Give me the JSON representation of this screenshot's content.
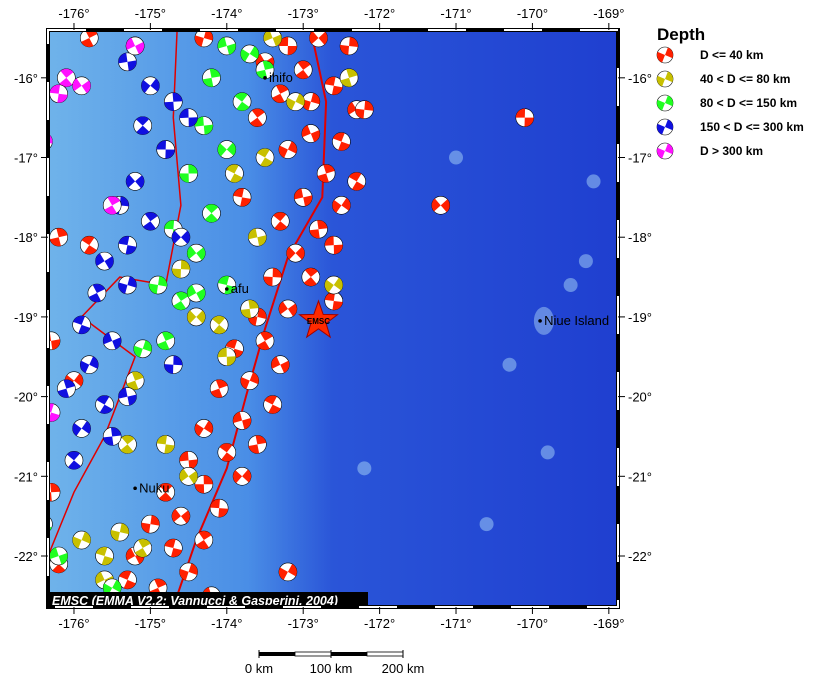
{
  "map": {
    "extent": {
      "lon": [
        -176.34,
        -168.88
      ],
      "lat": [
        -22.64,
        -15.4
      ]
    },
    "lon_ticks": [
      -176,
      -175,
      -174,
      -173,
      -172,
      -171,
      -170,
      -169
    ],
    "lat_ticks": [
      -16,
      -17,
      -18,
      -19,
      -20,
      -21,
      -22
    ],
    "lon_labels": [
      "-176°",
      "-175°",
      "-174°",
      "-173°",
      "-172°",
      "-171°",
      "-170°",
      "-169°"
    ],
    "lat_labels": [
      "-16°",
      "-17°",
      "-18°",
      "-19°",
      "-20°",
      "-21°",
      "-22°"
    ],
    "colors": {
      "ocean_shallow": "#6fb3ea",
      "ocean_deep": "#1f3fd0",
      "plate_boundary": "#e00000"
    },
    "places": [
      {
        "name": "ihifo",
        "lon": -173.5,
        "lat": -16.0
      },
      {
        "name": "afu",
        "lon": -174.0,
        "lat": -18.65
      },
      {
        "name": "Nuku",
        "lon": -175.2,
        "lat": -21.15
      },
      {
        "name": "Niue Island",
        "lon": -169.9,
        "lat": -19.05
      }
    ],
    "epicenter": {
      "label": "EMSC",
      "lon": -172.8,
      "lat": -19.05,
      "color": "#ff2a00"
    },
    "credit": "EMSC (EMMA V2.2; Vannucci & Gasperini, 2004)",
    "scale_bar": {
      "labels": [
        "0 km",
        "100 km",
        "200 km"
      ]
    },
    "plate_boundary": [
      [
        -172.9,
        -15.4
      ],
      [
        -172.7,
        -16.3
      ],
      [
        -172.75,
        -17.5
      ],
      [
        -173.2,
        -18.25
      ],
      [
        -173.5,
        -19.15
      ],
      [
        -173.75,
        -20.0
      ],
      [
        -174.0,
        -20.9
      ],
      [
        -174.4,
        -21.8
      ],
      [
        -174.7,
        -22.64
      ]
    ],
    "back_arc": [
      [
        -174.65,
        -15.4
      ],
      [
        -174.7,
        -16.5
      ],
      [
        -174.6,
        -17.6
      ],
      [
        -174.8,
        -18.6
      ],
      [
        -175.4,
        -18.5
      ],
      [
        -175.9,
        -19.0
      ],
      [
        -175.2,
        -19.5
      ],
      [
        -175.6,
        -20.5
      ],
      [
        -176.0,
        -21.2
      ],
      [
        -176.34,
        -22.0
      ]
    ],
    "events": [
      [
        -173.2,
        -15.6,
        1
      ],
      [
        -172.8,
        -15.5,
        1
      ],
      [
        -172.4,
        -15.6,
        1
      ],
      [
        -173.0,
        -15.9,
        1
      ],
      [
        -172.6,
        -16.1,
        1
      ],
      [
        -172.3,
        -16.4,
        1
      ],
      [
        -172.9,
        -16.3,
        1
      ],
      [
        -173.3,
        -16.2,
        1
      ],
      [
        -172.5,
        -16.8,
        1
      ],
      [
        -172.9,
        -16.7,
        1
      ],
      [
        -173.2,
        -16.9,
        1
      ],
      [
        -172.7,
        -17.2,
        1
      ],
      [
        -172.3,
        -17.3,
        1
      ],
      [
        -173.0,
        -17.5,
        1
      ],
      [
        -172.5,
        -17.6,
        1
      ],
      [
        -172.8,
        -17.9,
        1
      ],
      [
        -173.3,
        -17.8,
        1
      ],
      [
        -172.6,
        -18.1,
        1
      ],
      [
        -173.1,
        -18.2,
        1
      ],
      [
        -173.4,
        -18.5,
        1
      ],
      [
        -172.9,
        -18.5,
        1
      ],
      [
        -172.6,
        -18.8,
        1
      ],
      [
        -173.2,
        -18.9,
        1
      ],
      [
        -173.6,
        -19.0,
        1
      ],
      [
        -173.5,
        -19.3,
        1
      ],
      [
        -173.9,
        -19.4,
        1
      ],
      [
        -173.3,
        -19.6,
        1
      ],
      [
        -173.7,
        -19.8,
        1
      ],
      [
        -174.1,
        -19.9,
        1
      ],
      [
        -173.4,
        -20.1,
        1
      ],
      [
        -173.8,
        -20.3,
        1
      ],
      [
        -174.3,
        -20.4,
        1
      ],
      [
        -173.6,
        -20.6,
        1
      ],
      [
        -174.0,
        -20.7,
        1
      ],
      [
        -174.5,
        -20.8,
        1
      ],
      [
        -173.8,
        -21.0,
        1
      ],
      [
        -174.3,
        -21.1,
        1
      ],
      [
        -174.8,
        -21.2,
        1
      ],
      [
        -174.1,
        -21.4,
        1
      ],
      [
        -174.6,
        -21.5,
        1
      ],
      [
        -175.0,
        -21.6,
        1
      ],
      [
        -174.3,
        -21.8,
        1
      ],
      [
        -174.7,
        -21.9,
        1
      ],
      [
        -175.2,
        -22.0,
        1
      ],
      [
        -174.5,
        -22.2,
        1
      ],
      [
        -174.9,
        -22.4,
        1
      ],
      [
        -175.3,
        -22.3,
        1
      ],
      [
        -174.2,
        -22.5,
        1
      ],
      [
        -173.2,
        -22.2,
        1
      ],
      [
        -176.2,
        -18.0,
        1
      ],
      [
        -175.8,
        -18.1,
        1
      ],
      [
        -176.3,
        -19.3,
        1
      ],
      [
        -176.0,
        -19.8,
        1
      ],
      [
        -176.3,
        -21.2,
        1
      ],
      [
        -176.2,
        -22.1,
        1
      ],
      [
        -170.1,
        -16.5,
        1
      ],
      [
        -171.2,
        -17.6,
        1
      ],
      [
        -172.2,
        -16.4,
        1
      ],
      [
        -173.6,
        -16.5,
        1
      ],
      [
        -173.8,
        -17.5,
        1
      ],
      [
        -173.5,
        -15.8,
        1
      ],
      [
        -174.3,
        -15.5,
        1
      ],
      [
        -175.8,
        -15.5,
        1
      ],
      [
        -175.2,
        -15.6,
        1
      ],
      [
        -173.4,
        -15.5,
        2
      ],
      [
        -173.1,
        -16.3,
        2
      ],
      [
        -172.4,
        -16.0,
        2
      ],
      [
        -173.5,
        -17.0,
        2
      ],
      [
        -173.6,
        -18.0,
        2
      ],
      [
        -172.6,
        -18.6,
        2
      ],
      [
        -173.7,
        -18.9,
        2
      ],
      [
        -174.1,
        -19.1,
        2
      ],
      [
        -174.0,
        -19.5,
        2
      ],
      [
        -174.4,
        -19.0,
        2
      ],
      [
        -174.6,
        -18.4,
        2
      ],
      [
        -175.3,
        -20.6,
        2
      ],
      [
        -174.8,
        -20.6,
        2
      ],
      [
        -174.5,
        -21.0,
        2
      ],
      [
        -175.4,
        -21.7,
        2
      ],
      [
        -175.1,
        -21.9,
        2
      ],
      [
        -175.6,
        -22.0,
        2
      ],
      [
        -175.6,
        -22.3,
        2
      ],
      [
        -175.9,
        -21.8,
        2
      ],
      [
        -175.2,
        -19.8,
        2
      ],
      [
        -173.9,
        -17.2,
        2
      ],
      [
        -174.0,
        -15.6,
        3
      ],
      [
        -173.7,
        -15.7,
        3
      ],
      [
        -174.2,
        -16.0,
        3
      ],
      [
        -173.8,
        -16.3,
        3
      ],
      [
        -174.3,
        -16.6,
        3
      ],
      [
        -174.0,
        -16.9,
        3
      ],
      [
        -174.5,
        -17.2,
        3
      ],
      [
        -174.2,
        -17.7,
        3
      ],
      [
        -174.7,
        -17.9,
        3
      ],
      [
        -174.4,
        -18.2,
        3
      ],
      [
        -174.9,
        -18.6,
        3
      ],
      [
        -174.6,
        -18.8,
        3
      ],
      [
        -174.0,
        -18.6,
        3
      ],
      [
        -174.4,
        -18.7,
        3
      ],
      [
        -175.1,
        -19.4,
        3
      ],
      [
        -174.8,
        -19.3,
        3
      ],
      [
        -176.4,
        -21.6,
        3
      ],
      [
        -176.2,
        -22.0,
        3
      ],
      [
        -175.5,
        -22.4,
        3
      ],
      [
        -173.5,
        -15.9,
        3
      ],
      [
        -174.8,
        -16.9,
        3
      ],
      [
        -175.3,
        -15.8,
        4
      ],
      [
        -175.0,
        -16.1,
        4
      ],
      [
        -174.7,
        -16.3,
        4
      ],
      [
        -175.1,
        -16.6,
        4
      ],
      [
        -174.8,
        -16.9,
        4
      ],
      [
        -175.2,
        -17.3,
        4
      ],
      [
        -175.4,
        -17.6,
        4
      ],
      [
        -175.0,
        -17.8,
        4
      ],
      [
        -175.3,
        -18.1,
        4
      ],
      [
        -175.6,
        -18.3,
        4
      ],
      [
        -175.3,
        -18.6,
        4
      ],
      [
        -175.7,
        -18.7,
        4
      ],
      [
        -175.9,
        -19.1,
        4
      ],
      [
        -175.5,
        -19.3,
        4
      ],
      [
        -175.8,
        -19.6,
        4
      ],
      [
        -176.1,
        -19.9,
        4
      ],
      [
        -175.6,
        -20.1,
        4
      ],
      [
        -175.3,
        -20.0,
        4
      ],
      [
        -175.9,
        -20.4,
        4
      ],
      [
        -175.5,
        -20.5,
        4
      ],
      [
        -176.0,
        -20.8,
        4
      ],
      [
        -174.5,
        -16.5,
        4
      ],
      [
        -174.6,
        -18.0,
        4
      ],
      [
        -174.7,
        -19.6,
        4
      ],
      [
        -176.1,
        -16.0,
        5
      ],
      [
        -176.2,
        -16.2,
        5
      ],
      [
        -175.9,
        -16.1,
        5
      ],
      [
        -176.4,
        -16.8,
        5
      ],
      [
        -175.5,
        -17.6,
        5
      ],
      [
        -176.3,
        -20.2,
        5
      ],
      [
        -175.2,
        -15.6,
        5
      ]
    ]
  },
  "legend": {
    "title": "Depth",
    "items": [
      {
        "label": "D <= 40 km",
        "color": "#ff2000"
      },
      {
        "label": "40 < D <= 80 km",
        "color": "#c8c000"
      },
      {
        "label": "80 < D <= 150 km",
        "color": "#20ff20"
      },
      {
        "label": "150 < D <= 300 km",
        "color": "#1010e0"
      },
      {
        "label": "D > 300 km",
        "color": "#ff10ff"
      }
    ]
  }
}
